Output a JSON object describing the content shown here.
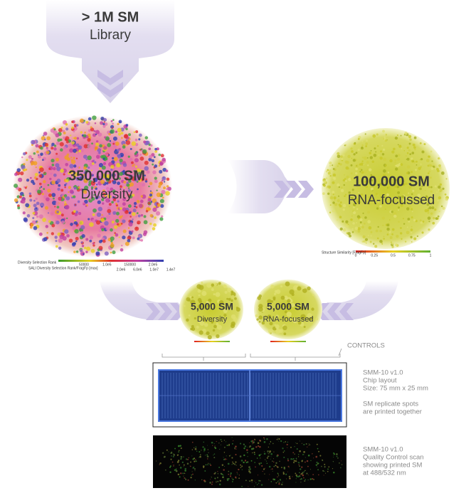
{
  "library": {
    "title": "> 1M SM",
    "subtitle": "Library"
  },
  "diversity": {
    "title": "350,000 SM",
    "subtitle": "Diversity",
    "legend": {
      "rank_label": "Diversity Selection Rank",
      "rank_ticks": [
        "50000",
        "1.0e5",
        "150000",
        "2.0e5"
      ],
      "sali_label": "SALI Diversity Selection Rank/FragFp [max]",
      "sali_ticks": [
        "2.0e6",
        "6.0e6",
        "1.0e7",
        "1.4e7"
      ]
    }
  },
  "rna": {
    "title": "100,000 SM",
    "subtitle": "RNA-focussed",
    "legend": {
      "label": "Structure Similarity [FragFp]",
      "ticks": [
        "0",
        "0.25",
        "0.5",
        "0.75",
        "1"
      ]
    }
  },
  "small_diversity": {
    "title": "5,000 SM",
    "subtitle": "Diversity"
  },
  "small_rna": {
    "title": "5,000 SM",
    "subtitle": "RNA-focussed"
  },
  "controls": "CONTROLS",
  "chip_notes": [
    "SMM-10 v1.0",
    "Chip layout",
    "Size: 75 mm x 25 mm",
    "SM replicate spots",
    "are printed together"
  ],
  "scan_notes": [
    "SMM-10 v1.0",
    "Quality Control scan",
    "showing printed SM",
    "at 488/532 nm"
  ]
}
